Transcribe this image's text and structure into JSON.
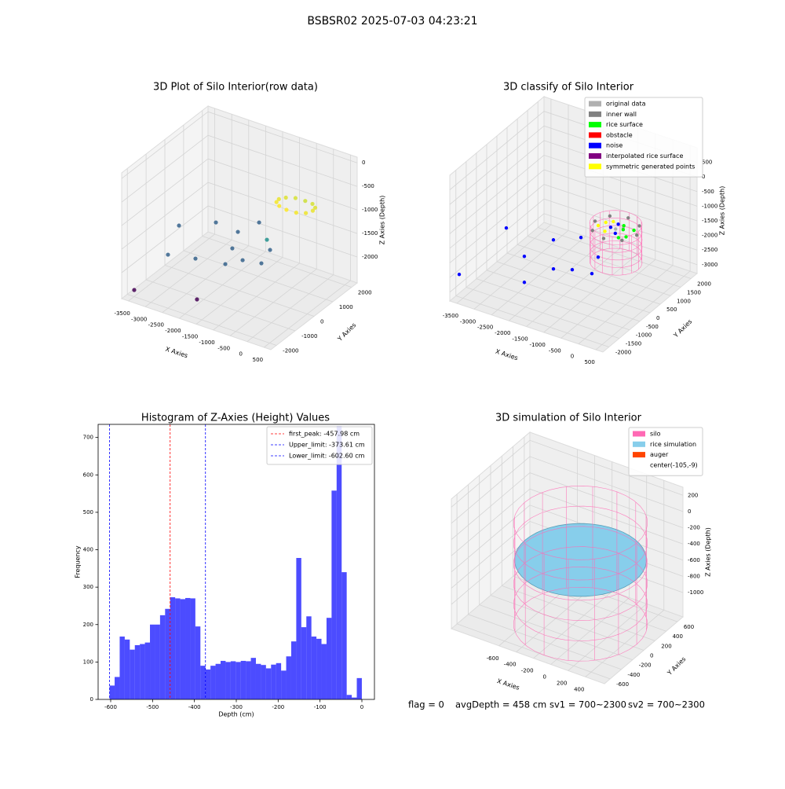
{
  "title": "BSBSR02 2025-07-03 04:23:21",
  "chart_data": [
    {
      "type": "scatter3d",
      "title": "3D Plot of Silo Interior(row data)",
      "xlabel": "X Axies",
      "ylabel": "Y Axies",
      "zlabel": "Z Axies (Depth)",
      "xlim": [
        -3700,
        700
      ],
      "ylim": [
        -2300,
        2300
      ],
      "zlim": [
        -2550,
        120
      ],
      "xticks": [
        -3500,
        -3000,
        -2500,
        -2000,
        -1500,
        -1000,
        -500,
        0,
        500
      ],
      "yticks": [
        -2000,
        -1000,
        0,
        1000,
        2000
      ],
      "zticks": [
        -2000,
        -1500,
        -1000,
        -500,
        0
      ],
      "colormap": "viridis",
      "points": {
        "x": [
          -3650,
          -2978,
          -2279,
          -2094,
          -1957,
          -3106,
          -2440,
          -1434,
          -1144,
          -1685,
          -968,
          -3485,
          -1952,
          -1104,
          0,
          -67,
          -250,
          -500,
          -750,
          -933,
          -1000,
          -933,
          -750,
          -500,
          -250,
          -67
        ],
        "y": [
          663,
          1416,
          1325,
          2121,
          446,
          -906,
          -644,
          51,
          989,
          -418,
          209,
          -2020,
          -1444,
          750,
          1200,
          1450,
          1633,
          1700,
          1633,
          1450,
          1200,
          950,
          767,
          700,
          767,
          950
        ],
        "z": [
          -1900,
          -1900,
          -1900,
          -1900,
          -1900,
          -1900,
          -1900,
          -1900,
          -1900,
          -1900,
          -1900,
          -2400,
          -2400,
          -1600,
          -850,
          -880,
          -900,
          -920,
          -900,
          -880,
          -850,
          -820,
          -800,
          -800,
          -820,
          -840
        ]
      }
    },
    {
      "type": "scatter3d",
      "title": "3D classify of Silo Interior",
      "xlabel": "X Axies",
      "ylabel": "Y Axies",
      "zlabel": "Z Axies (Depth)",
      "xlim": [
        -3700,
        700
      ],
      "ylim": [
        -2300,
        2300
      ],
      "zlim": [
        -3300,
        1000
      ],
      "xticks": [
        -3500,
        -3000,
        -2500,
        -2000,
        -1500,
        -1000,
        -500,
        0,
        500
      ],
      "yticks": [
        -2000,
        -1500,
        -1000,
        -500,
        0,
        500,
        1000,
        1500,
        2000
      ],
      "zticks": [
        -3000,
        -2500,
        -2000,
        -1500,
        -1000,
        -500,
        0,
        500
      ],
      "legend": "upper right",
      "silo": {
        "center": [
          -750,
          800
        ],
        "radius": 650,
        "zlim": [
          -2600,
          -1300
        ],
        "color": "#ff69b4"
      },
      "series": [
        {
          "name": "original data",
          "color": "#b0b0b0",
          "x": [
            -700,
            -600
          ],
          "y": [
            700,
            900
          ],
          "z": [
            -1400,
            -1450
          ]
        },
        {
          "name": "inner wall",
          "color": "#808080",
          "x": [
            -150,
            -326,
            -750,
            -1174,
            -1350,
            -1174,
            -750,
            -326
          ],
          "y": [
            800,
            1224,
            1400,
            1224,
            800,
            376,
            200,
            376
          ],
          "z": [
            -1450,
            -1450,
            -1450,
            -1450,
            -1450,
            -1450,
            -1450,
            -1450
          ]
        },
        {
          "name": "rice surface",
          "color": "#00ff00",
          "x": [
            -600,
            -400,
            -500,
            -700,
            -350
          ],
          "y": [
            900,
            700,
            500,
            1100,
            1000
          ],
          "z": [
            -1500,
            -1550,
            -1500,
            -1520,
            -1480
          ]
        },
        {
          "name": "obstacle",
          "color": "#ff0000",
          "x": [],
          "y": [],
          "z": []
        },
        {
          "name": "noise",
          "color": "#0000ff",
          "x": [
            -3584,
            -3043,
            -2692,
            -2053,
            -2501,
            -1786,
            -1380,
            -880,
            -1994,
            -1157,
            -800,
            -900,
            -650
          ],
          "y": [
            -2037,
            -658,
            -373,
            -1458,
            722,
            -492,
            -262,
            -152,
            1205,
            624,
            1000,
            800,
            600
          ],
          "z": [
            -2500,
            -1500,
            -2500,
            -2500,
            -2500,
            -2500,
            -2500,
            -2500,
            -2500,
            -2500,
            -1450,
            -1480,
            -1470
          ]
        },
        {
          "name": "interpolated rice surface",
          "color": "#800080",
          "x": [],
          "y": [],
          "z": []
        },
        {
          "name": "symmetric generated points",
          "color": "#ffff00",
          "x": [
            -1100,
            -1000,
            -1200,
            -950
          ],
          "y": [
            900,
            1100,
            700,
            600
          ],
          "z": [
            -1450,
            -1500,
            -1480,
            -1520
          ]
        }
      ]
    },
    {
      "type": "histogram",
      "title": "Histogram of Z-Axies (Height) Values",
      "xlabel": "Depth (cm)",
      "ylabel": "Frequency",
      "color": "#0000ff",
      "bins": [
        -602.6,
        -590.55,
        -578.5,
        -566.45,
        -554.4,
        -542.35,
        -530.3,
        -518.25,
        -506.2,
        -494.15,
        -482.1,
        -470.05,
        -458.0,
        -445.95,
        -433.9,
        -421.85,
        -409.8,
        -397.75,
        -385.7,
        -373.65,
        -361.6,
        -349.55,
        -337.5,
        -325.45,
        -313.4,
        -301.35,
        -289.3,
        -277.25,
        -265.2,
        -253.15,
        -241.1,
        -229.05,
        -217.0,
        -204.95,
        -192.9,
        -180.85,
        -168.8,
        -156.75,
        -144.7,
        -132.65,
        -120.6,
        -108.55,
        -96.5,
        -84.45,
        -72.4,
        -60.35,
        -48.3,
        -36.25,
        -24.2,
        -12.15,
        -0.1
      ],
      "values": [
        37,
        60,
        168,
        160,
        133,
        145,
        148,
        152,
        200,
        200,
        225,
        242,
        273,
        270,
        268,
        271,
        270,
        195,
        90,
        80,
        90,
        95,
        103,
        100,
        102,
        100,
        103,
        102,
        111,
        95,
        92,
        83,
        93,
        97,
        77,
        115,
        155,
        378,
        193,
        222,
        168,
        162,
        148,
        218,
        558,
        730,
        340,
        12,
        5,
        57
      ],
      "xlim": [
        -630,
        30
      ],
      "ylim": [
        0,
        735
      ],
      "xticks": [
        -600,
        -500,
        -400,
        -300,
        -200,
        -100,
        0
      ],
      "yticks": [
        0,
        100,
        200,
        300,
        400,
        500,
        600,
        700
      ],
      "legend": "upper right",
      "vlines": [
        {
          "value": -457.98,
          "label": "first_peak: -457.98 cm",
          "color": "#ff0000"
        },
        {
          "value": -373.61,
          "label": "Upper_limit: -373.61 cm",
          "color": "#0000ff"
        },
        {
          "value": -602.6,
          "label": "Lower_limit: -602.60 cm",
          "color": "#0000ff"
        }
      ]
    },
    {
      "type": "surface3d",
      "title": "3D simulation of Silo Interior",
      "xlabel": "X Axies",
      "ylabel": "Y Axies",
      "zlabel": "Z Axies (Depth)",
      "xlim": [
        -1150,
        620
      ],
      "ylim": [
        -700,
        700
      ],
      "zlim": [
        -1300,
        300
      ],
      "xticks": [
        -600,
        -400,
        -200,
        0,
        200,
        400
      ],
      "yticks": [
        -600,
        -400,
        -200,
        0,
        200,
        400,
        600
      ],
      "zticks": [
        -1000,
        -800,
        -600,
        -400,
        -200,
        0,
        200
      ],
      "legend": "upper right",
      "series": [
        {
          "name": "silo",
          "color": "#ff69b4",
          "center": [
            -105,
            -9
          ],
          "radius": 650,
          "zlim": [
            -1250,
            0
          ]
        },
        {
          "name": "rice simulation",
          "color": "#87ceeb",
          "center": [
            -105,
            -9
          ],
          "radius": 640,
          "z": -458
        },
        {
          "name": "auger",
          "color": "#ff4500"
        },
        {
          "name": "center(-105,-9)",
          "color": "#ffffff"
        }
      ]
    }
  ],
  "footer": [
    "flag = 0",
    "avgDepth = 458 cm",
    "sv1 = 700~2300",
    "sv2 = 700~2300"
  ]
}
